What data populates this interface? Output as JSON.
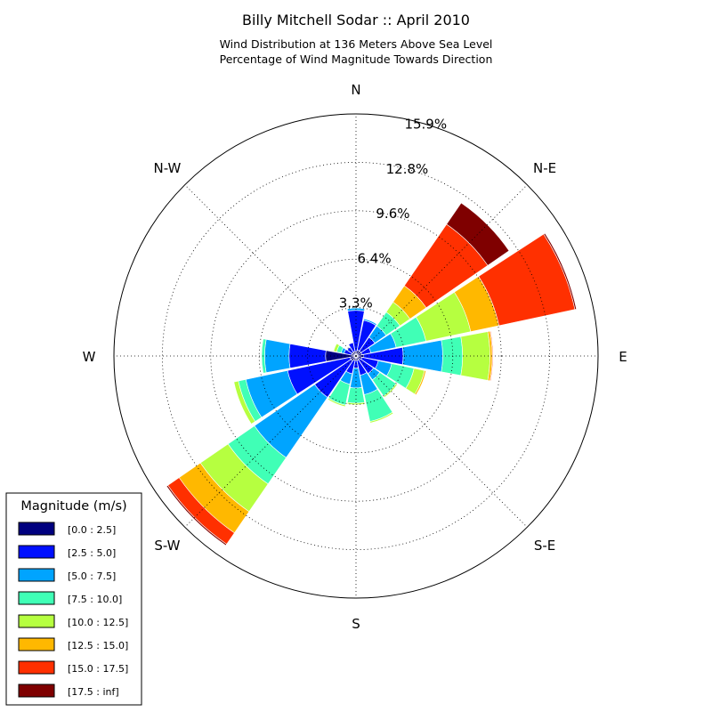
{
  "chart_data": {
    "type": "windrose",
    "title": "Billy Mitchell Sodar :: April 2010",
    "subtitle_lines": [
      "Wind Distribution at 136 Meters Above Sea Level",
      "Percentage of Wind Magnitude Towards Direction"
    ],
    "radial_unit": "%",
    "radial_max": 15.9,
    "radial_ticks": [
      "3.3%",
      "6.4%",
      "9.6%",
      "12.8%",
      "15.9%"
    ],
    "radial_tick_values": [
      3.18,
      6.36,
      9.54,
      12.72,
      15.9
    ],
    "direction_labels": [
      "N",
      "N-E",
      "E",
      "S-E",
      "S",
      "S-W",
      "W",
      "N-W"
    ],
    "legend_title": "Magnitude (m/s)",
    "bins": [
      {
        "label": "[0.0 : 2.5]",
        "color": "#00007f"
      },
      {
        "label": "[2.5 : 5.0]",
        "color": "#0010ff"
      },
      {
        "label": "[5.0 : 7.5]",
        "color": "#00a4ff"
      },
      {
        "label": "[7.5 : 10.0]",
        "color": "#40ffb6"
      },
      {
        "label": "[10.0 : 12.5]",
        "color": "#b6ff40"
      },
      {
        "label": "[12.5 : 15.0]",
        "color": "#ffb800"
      },
      {
        "label": "[15.0 : 17.5]",
        "color": "#ff3000"
      },
      {
        "label": "[17.5 : inf]",
        "color": "#7f0000"
      }
    ],
    "directions_deg": [
      0,
      22.5,
      45,
      67.5,
      90,
      112.5,
      135,
      157.5,
      180,
      202.5,
      225,
      247.5,
      270,
      292.5,
      315,
      337.5
    ],
    "sectors_cumulative_pct": [
      [
        0.3,
        3.0,
        3.15,
        3.15,
        3.15,
        3.15,
        3.15,
        3.15
      ],
      [
        0.4,
        2.4,
        2.5,
        2.5,
        2.5,
        2.5,
        2.5,
        2.5
      ],
      [
        0.4,
        1.5,
        2.4,
        3.5,
        4.3,
        5.6,
        10.5,
        12.2
      ],
      [
        0.4,
        1.0,
        2.7,
        4.7,
        7.7,
        9.6,
        14.7,
        14.8
      ],
      [
        0.5,
        3.1,
        5.7,
        7.0,
        8.8,
        8.95,
        9.0,
        9.0
      ],
      [
        0.4,
        1.5,
        2.4,
        3.9,
        4.6,
        4.7,
        4.7,
        4.7
      ],
      [
        0.3,
        1.4,
        1.9,
        3.2,
        3.3,
        3.3,
        3.3,
        3.3
      ],
      [
        0.3,
        1.3,
        2.6,
        4.4,
        4.5,
        4.5,
        4.5,
        4.5
      ],
      [
        0.3,
        0.8,
        2.1,
        3.1,
        3.2,
        3.2,
        3.2,
        3.2
      ],
      [
        0.3,
        1.2,
        1.9,
        3.3,
        3.4,
        3.4,
        3.4,
        3.4
      ],
      [
        0.4,
        3.3,
        8.1,
        10.2,
        12.4,
        14.1,
        15.0,
        15.1
      ],
      [
        0.4,
        4.6,
        7.4,
        7.9,
        8.2,
        8.2,
        8.2,
        8.2
      ],
      [
        2.0,
        4.4,
        6.0,
        6.2,
        6.2,
        6.2,
        6.2,
        6.2
      ],
      [
        0.3,
        0.8,
        1.0,
        1.3,
        1.5,
        1.5,
        1.5,
        1.5
      ],
      [
        0.3,
        0.7,
        0.7,
        0.7,
        0.7,
        0.7,
        0.7,
        0.7
      ],
      [
        0.3,
        0.9,
        0.9,
        0.9,
        0.9,
        0.9,
        0.9,
        0.9
      ]
    ],
    "grid": true,
    "legend_position": "lower-left"
  }
}
